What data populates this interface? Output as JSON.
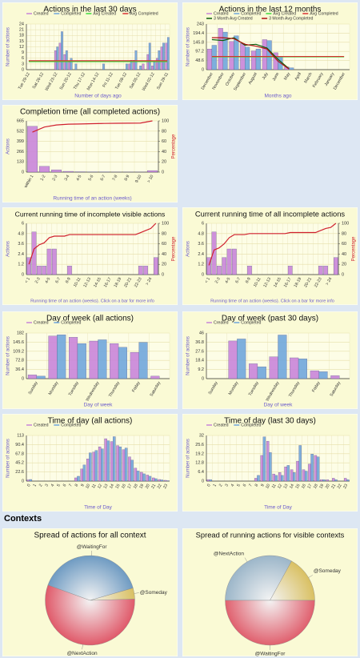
{
  "heading": "Contexts",
  "chart_data": [
    {
      "type": "bar",
      "title": "Actions in the last 30 days",
      "x_label": "Number of days ago",
      "y_label": "Number of actions",
      "legend": true,
      "categories": [
        "Tue 29-12",
        null,
        null,
        "Sat 26-12",
        null,
        null,
        "Wed 23-12",
        null,
        null,
        "Sun 20-12",
        null,
        null,
        "Thu 17-12",
        null,
        null,
        "Mon 14-12",
        null,
        null,
        "Fri 11-12",
        null,
        null,
        "Tue 08-12",
        null,
        null,
        "Sat 05-12",
        null,
        null,
        "Wed 02-12",
        null,
        null,
        "Sun 29-11"
      ],
      "ylim": [
        0,
        24
      ],
      "yticks": [
        0,
        3,
        6,
        9,
        12,
        15,
        18,
        21,
        24
      ],
      "series": [
        {
          "name": "Created",
          "type": "bar",
          "color": "#c985d9",
          "values": [
            0,
            0,
            0,
            0,
            0,
            0,
            10,
            14,
            8,
            4,
            0,
            0,
            0,
            0,
            0,
            0,
            0,
            0,
            0,
            0,
            0,
            0,
            3,
            5,
            0,
            3,
            8,
            2,
            6,
            12,
            14
          ]
        },
        {
          "name": "Completed",
          "type": "bar",
          "color": "#70a6db",
          "values": [
            0,
            0,
            0,
            0,
            0,
            0,
            12,
            20,
            10,
            6,
            3,
            0,
            0,
            0,
            0,
            0,
            3,
            0,
            0,
            0,
            0,
            3,
            5,
            10,
            2,
            0,
            14,
            4,
            10,
            14,
            17
          ]
        },
        {
          "name": "Avg Created",
          "type": "line",
          "color": "#3ddc3d",
          "values": [
            4.2,
            4.2,
            4.2,
            4.2,
            4.2,
            4.2,
            4.2,
            4.2,
            4.2,
            4.2,
            4.2,
            4.2,
            4.2,
            4.2,
            4.2,
            4.2,
            4.2,
            4.2,
            4.2,
            4.2,
            4.2,
            4.2,
            4.2,
            4.2,
            4.2,
            4.2,
            4.2,
            4.2,
            4.2,
            4.2,
            4.2
          ]
        },
        {
          "name": "Avg Completed",
          "type": "line",
          "color": "#d93030",
          "values": [
            4.7,
            4.7,
            4.7,
            4.7,
            4.7,
            4.7,
            4.7,
            4.7,
            4.7,
            4.7,
            4.7,
            4.7,
            4.7,
            4.7,
            4.7,
            4.7,
            4.7,
            4.7,
            4.7,
            4.7,
            4.7,
            4.7,
            4.7,
            4.7,
            4.7,
            4.7,
            4.7,
            4.7,
            4.7,
            4.7,
            4.7
          ]
        }
      ]
    },
    {
      "type": "bar",
      "title": "Actions in the last 12 months",
      "x_label": "Months ago",
      "y_label": "Number of actions",
      "legend": true,
      "categories": [
        "December",
        "November",
        "October",
        "September",
        "August",
        "July",
        "June",
        "May",
        "April",
        "March",
        "February",
        "January",
        "December"
      ],
      "ylim": [
        0,
        243
      ],
      "yticks": [
        0,
        48.6,
        97.2,
        145.8,
        194.4,
        243
      ],
      "series": [
        {
          "name": "Created",
          "type": "bar",
          "color": "#c985d9",
          "values": [
            110,
            220,
            150,
            140,
            100,
            160,
            90,
            15,
            0,
            0,
            0,
            0,
            0
          ]
        },
        {
          "name": "Completed",
          "type": "bar",
          "color": "#70a6db",
          "values": [
            130,
            200,
            180,
            120,
            110,
            155,
            70,
            10,
            0,
            0,
            0,
            0,
            0
          ]
        },
        {
          "name": "Avg Created",
          "type": "line",
          "color": "#3ddc3d",
          "values": [
            68,
            68,
            68,
            68,
            68,
            68,
            68,
            68,
            68,
            68,
            68,
            68,
            68
          ]
        },
        {
          "name": "Avg Completed",
          "type": "line",
          "color": "#d93030",
          "values": [
            70,
            70,
            70,
            70,
            70,
            70,
            70,
            70,
            70,
            70,
            70,
            70,
            70
          ]
        },
        {
          "name": "3 Month Avg Created",
          "type": "line",
          "color": "#0b5d0b",
          "values": [
            160,
            155,
            170,
            130,
            135,
            115,
            55,
            5,
            null,
            null,
            null,
            null,
            null
          ]
        },
        {
          "name": "3 Month Avg Completed",
          "type": "line",
          "color": "#b01010",
          "values": [
            170,
            170,
            165,
            135,
            125,
            110,
            45,
            3,
            null,
            null,
            null,
            null,
            null
          ]
        }
      ]
    },
    {
      "type": "bar",
      "title": "Completion time (all completed actions)",
      "x_label": "Running time of an action (weeks)",
      "y_label": "Actions",
      "y2_label": "Percentage",
      "legend": false,
      "categories": [
        "within 1",
        "1-2",
        "2-3",
        "3-4",
        "4-5",
        "5-6",
        "6-7",
        "7-8",
        "8-9",
        "9-10",
        "> 10"
      ],
      "ylim": [
        0,
        665
      ],
      "yticks": [
        0,
        133,
        266,
        399,
        532,
        665
      ],
      "y2lim": [
        0,
        100
      ],
      "y2ticks": [
        0,
        20,
        40,
        60,
        80,
        100
      ],
      "series": [
        {
          "name": "Actions",
          "type": "bar",
          "color": "#c985d9",
          "values": [
            595,
            75,
            30,
            10,
            5,
            3,
            2,
            1,
            1,
            1,
            20
          ]
        },
        {
          "name": "Percentage",
          "type": "line",
          "axis": "y2",
          "color": "#d0202e",
          "values": [
            78,
            88,
            92,
            93.5,
            94,
            94.5,
            95,
            95.3,
            95.5,
            95.7,
            100
          ]
        }
      ]
    },
    {
      "type": "bar",
      "title": "Current running time of incomplete visible actions",
      "x_label": "Running time of an action (weeks). Click on a bar for more info",
      "y_label": "Actions",
      "y2_label": "Percentage",
      "legend": false,
      "categories": [
        "< 1",
        null,
        "2-3",
        null,
        "4-5",
        null,
        "6-7",
        null,
        "8-9",
        null,
        "10-11",
        null,
        "12-13",
        null,
        "14-15",
        null,
        "16-17",
        null,
        "18-19",
        null,
        "20-21",
        null,
        "22-23",
        null,
        "> 24",
        null
      ],
      "ylim": [
        0,
        6
      ],
      "yticks": [
        0,
        1.2,
        2.4,
        3.6,
        4.8,
        6
      ],
      "y2lim": [
        0,
        100
      ],
      "y2ticks": [
        0,
        20,
        40,
        60,
        80,
        100
      ],
      "series": [
        {
          "name": "Actions",
          "type": "bar",
          "color": "#c985d9",
          "values": [
            2,
            5,
            1,
            1,
            3,
            3,
            0,
            0,
            1,
            0,
            0,
            0,
            0,
            0,
            0,
            0,
            0,
            0,
            0,
            0,
            0,
            0,
            1,
            1,
            0,
            2
          ]
        },
        {
          "name": "Percentage",
          "type": "line",
          "axis": "y2",
          "color": "#d0202e",
          "values": [
            20,
            50,
            58,
            62,
            72,
            75,
            75,
            75,
            78,
            78,
            78,
            78,
            78,
            78,
            78,
            78,
            78,
            78,
            78,
            78,
            78,
            78,
            82,
            86,
            90,
            100
          ]
        }
      ]
    },
    {
      "type": "bar",
      "title": "Current running time of all incomplete actions",
      "x_label": "Running time of an action (weeks). Click on a bar for more info",
      "y_label": "Actions",
      "y2_label": "Percentage",
      "legend": false,
      "categories": [
        "< 1",
        null,
        "2-3",
        null,
        "4-5",
        null,
        "6-7",
        null,
        "8-9",
        null,
        "10-11",
        null,
        "12-13",
        null,
        "14-15",
        null,
        "16-17",
        null,
        "18-19",
        null,
        "20-21",
        null,
        "22-23",
        null,
        "> 24",
        null
      ],
      "ylim": [
        0,
        6
      ],
      "yticks": [
        0,
        1.2,
        2.4,
        3.6,
        4.8,
        6
      ],
      "y2lim": [
        0,
        100
      ],
      "y2ticks": [
        0,
        20,
        40,
        60,
        80,
        100
      ],
      "series": [
        {
          "name": "Actions",
          "type": "bar",
          "color": "#c985d9",
          "values": [
            2,
            5,
            1,
            2,
            3,
            3,
            0,
            0,
            1,
            0,
            0,
            0,
            0,
            0,
            0,
            0,
            1,
            0,
            0,
            0,
            0,
            0,
            1,
            1,
            0,
            2
          ]
        },
        {
          "name": "Percentage",
          "type": "line",
          "axis": "y2",
          "color": "#d0202e",
          "values": [
            18,
            48,
            52,
            60,
            72,
            78,
            78,
            78,
            80,
            80,
            80,
            80,
            80,
            80,
            80,
            80,
            82,
            82,
            82,
            82,
            82,
            82,
            86,
            90,
            92,
            100
          ]
        }
      ]
    },
    {
      "type": "bar",
      "title": "Day of week (all actions)",
      "x_label": "Day of week",
      "y_label": "Number of actions",
      "legend": true,
      "categories": [
        "Sunday",
        "Monday",
        "Tuesday",
        "Wednesday",
        "Thursday",
        "Friday",
        "Saturday"
      ],
      "ylim": [
        0,
        182
      ],
      "yticks": [
        0,
        36.4,
        72.8,
        109.2,
        145.6,
        182
      ],
      "series": [
        {
          "name": "Created",
          "type": "bar",
          "color": "#c985d9",
          "values": [
            15,
            170,
            165,
            150,
            140,
            105,
            10
          ]
        },
        {
          "name": "Completed",
          "type": "bar",
          "color": "#70a6db",
          "values": [
            10,
            175,
            140,
            155,
            125,
            145,
            0
          ]
        }
      ]
    },
    {
      "type": "bar",
      "title": "Day of week (past 30 days)",
      "x_label": "Day of week",
      "y_label": "Number of actions",
      "legend": true,
      "categories": [
        "Sunday",
        "Monday",
        "Tuesday",
        "Wednesday",
        "Thursday",
        "Friday",
        "Saturday"
      ],
      "ylim": [
        0,
        46
      ],
      "yticks": [
        0,
        9.2,
        18.4,
        27.6,
        36.8,
        46
      ],
      "series": [
        {
          "name": "Created",
          "type": "bar",
          "color": "#c985d9",
          "values": [
            0,
            38,
            15,
            22,
            21,
            8,
            3
          ]
        },
        {
          "name": "Completed",
          "type": "bar",
          "color": "#70a6db",
          "values": [
            0,
            40,
            12,
            44,
            20,
            7,
            0
          ]
        }
      ]
    },
    {
      "type": "bar",
      "title": "Time of day (all actions)",
      "x_label": "Time of Day",
      "y_label": "Number of actions",
      "legend": true,
      "categories": [
        "0",
        "1",
        "2",
        "3",
        "4",
        "5",
        "6",
        "7",
        "8",
        "9",
        "10",
        "11",
        "12",
        "13",
        "14",
        "15",
        "16",
        "17",
        "18",
        "19",
        "20",
        "21",
        "22",
        "23"
      ],
      "ylim": [
        0,
        113
      ],
      "yticks": [
        0,
        22.6,
        45.2,
        67.8,
        90.4,
        113
      ],
      "series": [
        {
          "name": "Created",
          "type": "bar",
          "color": "#c985d9",
          "values": [
            3,
            0,
            0,
            0,
            0,
            0,
            0,
            0,
            8,
            30,
            55,
            72,
            85,
            105,
            98,
            88,
            78,
            60,
            32,
            22,
            15,
            8,
            4,
            2
          ]
        },
        {
          "name": "Completed",
          "type": "bar",
          "color": "#70a6db",
          "values": [
            4,
            0,
            0,
            0,
            0,
            0,
            0,
            0,
            12,
            40,
            70,
            76,
            80,
            100,
            110,
            85,
            82,
            52,
            25,
            18,
            12,
            6,
            3,
            1
          ]
        }
      ]
    },
    {
      "type": "bar",
      "title": "Time of day (last 30 days)",
      "x_label": "Time of Day",
      "y_label": "Number of actions",
      "legend": true,
      "categories": [
        "0",
        "1",
        "2",
        "3",
        "4",
        "5",
        "6",
        "7",
        "8",
        "9",
        "10",
        "11",
        "12",
        "13",
        "14",
        "15",
        "16",
        "17",
        "18",
        "19",
        "20",
        "21",
        "22",
        "23"
      ],
      "ylim": [
        0,
        32
      ],
      "yticks": [
        0,
        6.4,
        12.8,
        19.2,
        25.6,
        32
      ],
      "series": [
        {
          "name": "Created",
          "type": "bar",
          "color": "#c985d9",
          "values": [
            1,
            0,
            0,
            0,
            0,
            0,
            0,
            0,
            2,
            18,
            28,
            5,
            6,
            10,
            8,
            14,
            8,
            12,
            18,
            1,
            1,
            2,
            0,
            2
          ]
        },
        {
          "name": "Completed",
          "type": "bar",
          "color": "#70a6db",
          "values": [
            1,
            0,
            0,
            0,
            0,
            0,
            0,
            0,
            4,
            31,
            20,
            4,
            4,
            11,
            6,
            25,
            7,
            19,
            17,
            1,
            0,
            1,
            0,
            1
          ]
        }
      ]
    },
    {
      "type": "pie",
      "title": "Spread of actions for all context",
      "start_angle": -160,
      "labels": [
        "@WaitingFor",
        "@Someday",
        "@NextAction"
      ],
      "values": [
        40,
        4,
        56
      ],
      "colors": [
        "#6f9bc2",
        "#d9c062",
        "#e05a6a"
      ]
    },
    {
      "type": "pie",
      "title": "Spread of running actions for visible contexts",
      "start_angle": 180,
      "labels": [
        "@NextAction",
        "@Someday",
        "@WaitingFor"
      ],
      "values": [
        33,
        17,
        50
      ],
      "colors": [
        "#9cb6c9",
        "#d9c062",
        "#e0606e"
      ]
    }
  ]
}
